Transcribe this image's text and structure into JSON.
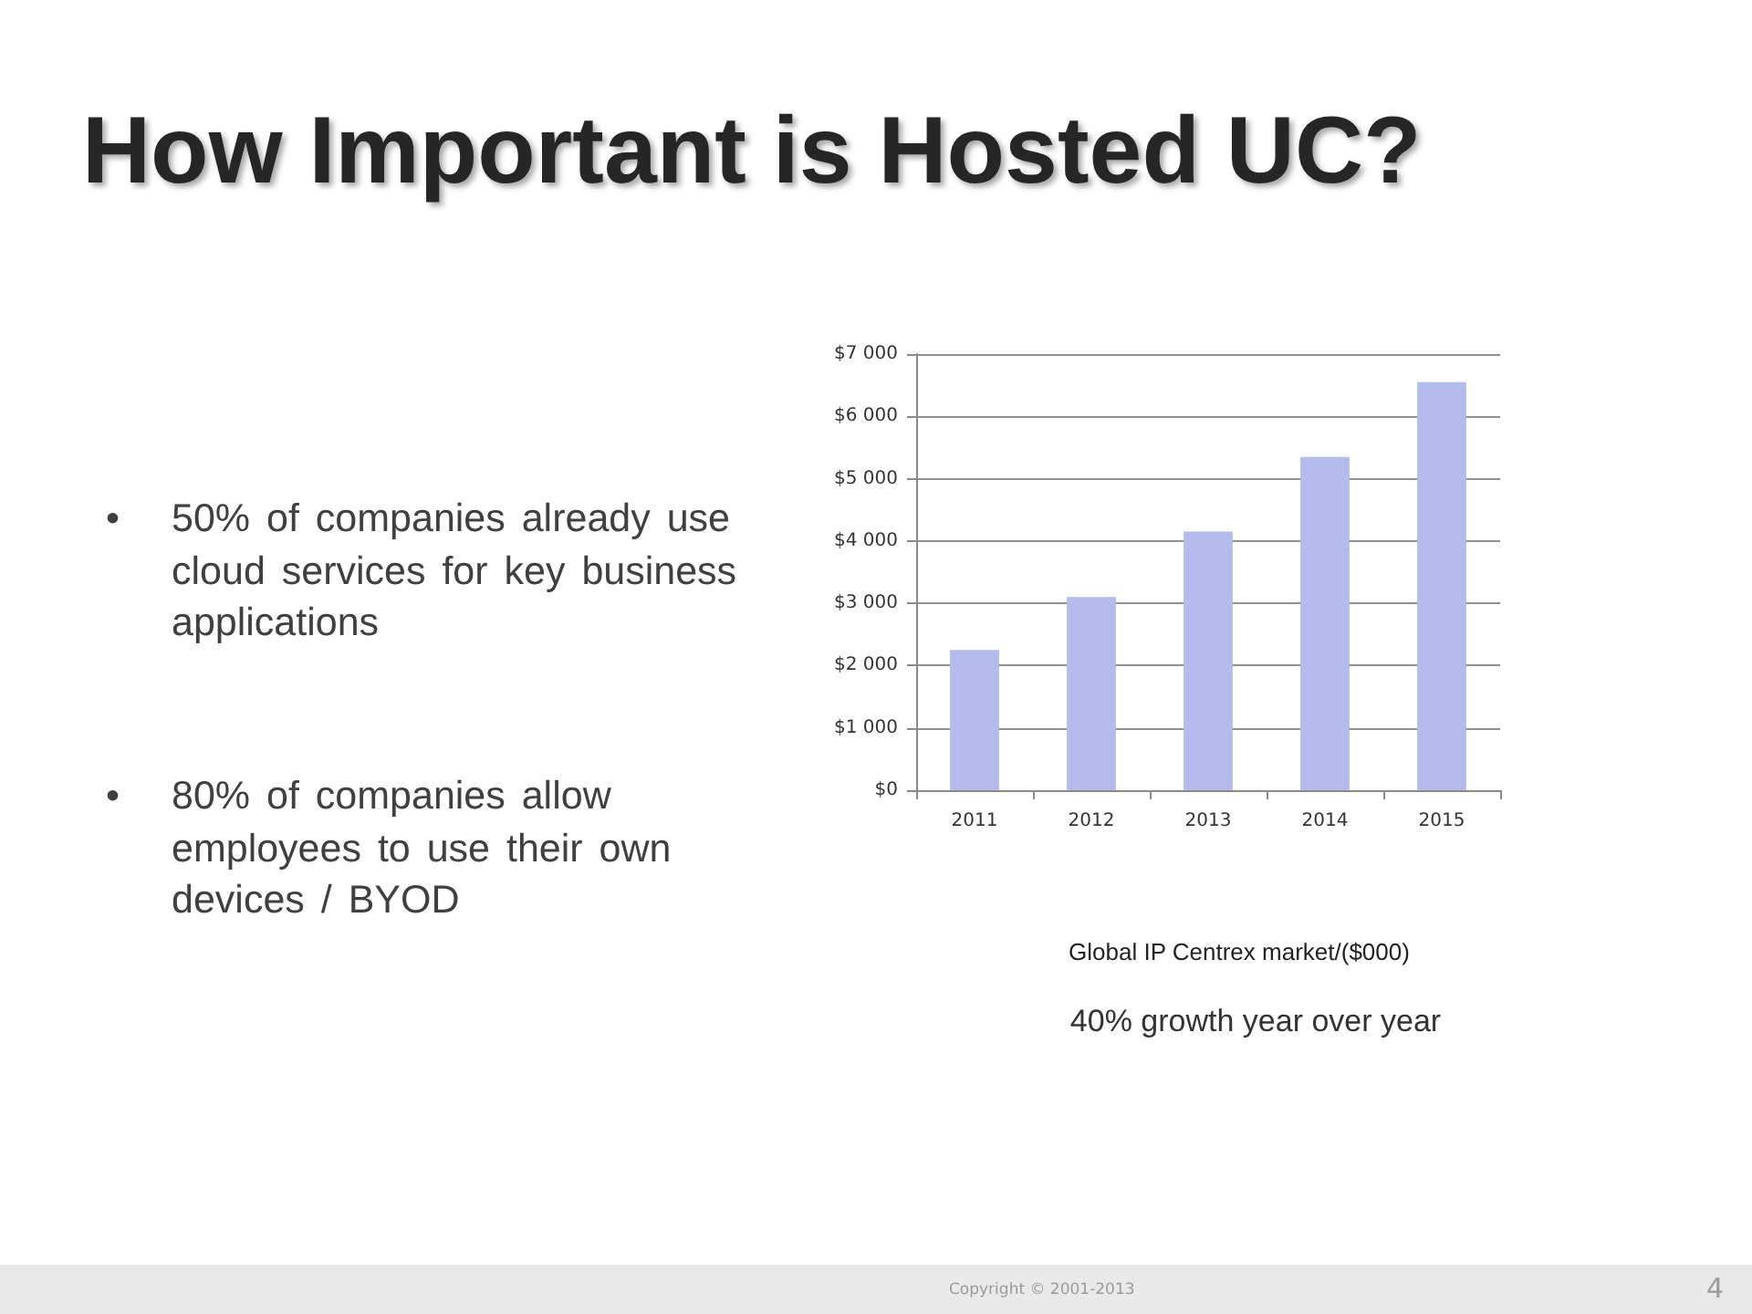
{
  "chart_data": {
    "type": "bar",
    "title": "How Important is Hosted UC?",
    "categories": [
      "2011",
      "2012",
      "2013",
      "2014",
      "2015"
    ],
    "values": [
      2250,
      3100,
      4150,
      5350,
      6550
    ],
    "color": "#b3bcec",
    "ylim": [
      0,
      7000
    ],
    "yticks": [
      {
        "value": 0,
        "label": "$0"
      },
      {
        "value": 1000,
        "label": "$1 000"
      },
      {
        "value": 2000,
        "label": "$2 000"
      },
      {
        "value": 3000,
        "label": "$3 000"
      },
      {
        "value": 4000,
        "label": "$4 000"
      },
      {
        "value": 5000,
        "label": "$5 000"
      },
      {
        "value": 6000,
        "label": "$6 000"
      },
      {
        "value": 7000,
        "label": "$7 000"
      }
    ],
    "grid": "y",
    "annotations": [
      "•",
      "50% of companies already use cloud services for key business applications",
      "•",
      "80% of companies allow employees to use their own devices / BYOD",
      "Global IP Centrex market/($000)",
      "40% growth year over year",
      "Copyright © 2001-2013",
      "4"
    ]
  }
}
